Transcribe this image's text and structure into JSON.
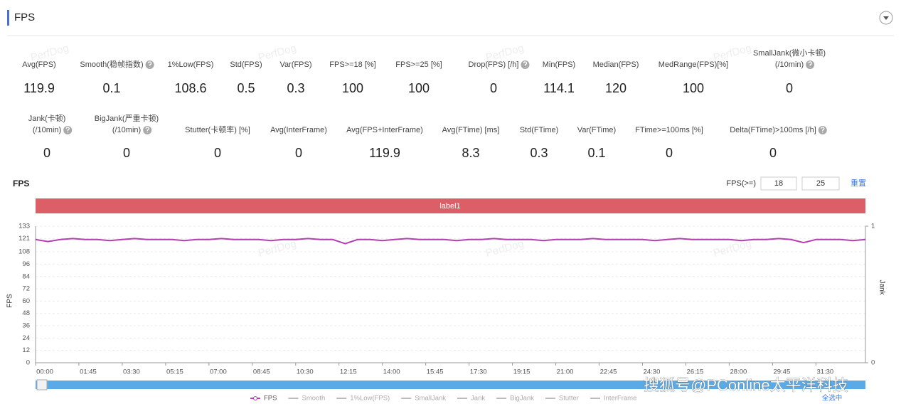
{
  "header": {
    "title": "FPS"
  },
  "watermark": "PerfDog",
  "stats": [
    [
      {
        "label": [
          "Avg(FPS)"
        ],
        "value": 119.9
      },
      {
        "label": [
          "Smooth(稳帧指数)"
        ],
        "value": 0.1,
        "help": true
      },
      {
        "label": [
          "1%Low(FPS)"
        ],
        "value": 108.6
      },
      {
        "label": [
          "Std(FPS)"
        ],
        "value": 0.5
      },
      {
        "label": [
          "Var(FPS)"
        ],
        "value": 0.3
      },
      {
        "label": [
          "FPS>=18 [%]"
        ],
        "value": 100
      },
      {
        "label": [
          "FPS>=25 [%]"
        ],
        "value": 100
      },
      {
        "label": [
          "Drop(FPS) [/h]"
        ],
        "value": 0,
        "help": true
      },
      {
        "label": [
          "Min(FPS)"
        ],
        "value": 114.1
      },
      {
        "label": [
          "Median(FPS)"
        ],
        "value": 120
      },
      {
        "label": [
          "MedRange(FPS)[%]"
        ],
        "value": 100
      },
      {
        "label": [
          "SmallJank(微小卡顿)",
          "(/10min)"
        ],
        "value": 0,
        "help": true
      }
    ],
    [
      {
        "label": [
          "Jank(卡顿)",
          "(/10min)"
        ],
        "value": 0,
        "help": true
      },
      {
        "label": [
          "BigJank(严重卡顿)",
          "(/10min)"
        ],
        "value": 0,
        "help": true
      },
      {
        "label": [
          "Stutter(卡顿率) [%]"
        ],
        "value": 0
      },
      {
        "label": [
          "Avg(InterFrame)"
        ],
        "value": 0
      },
      {
        "label": [
          "Avg(FPS+InterFrame)"
        ],
        "value": 119.9
      },
      {
        "label": [
          "Avg(FTime) [ms]"
        ],
        "value": 8.3
      },
      {
        "label": [
          "Std(FTime)"
        ],
        "value": 0.3
      },
      {
        "label": [
          "Var(FTime)"
        ],
        "value": 0.1
      },
      {
        "label": [
          "FTime>=100ms [%]"
        ],
        "value": 0
      },
      {
        "label": [
          "Delta(FTime)>100ms [/h]"
        ],
        "value": 0,
        "help": true
      }
    ]
  ],
  "controls": {
    "threshold_label": "FPS(>=)",
    "thresholds": [
      "18",
      "25"
    ],
    "reset": "重置",
    "select_all": "全选中"
  },
  "footer_watermark": "搜狐号@PConline太平洋科技",
  "chart_data": {
    "type": "line",
    "title": "FPS",
    "band_label": "label1",
    "y_label": "FPS",
    "y2_label": "Jank",
    "x": [
      0,
      30,
      60,
      90,
      120,
      150,
      180,
      210,
      240,
      270,
      300,
      330,
      360,
      390,
      420,
      450,
      480,
      510,
      540,
      570,
      600,
      630,
      660,
      690,
      720,
      750,
      780,
      810,
      840,
      870,
      900,
      930,
      960,
      990,
      1020,
      1050,
      1080,
      1110,
      1140,
      1170,
      1200,
      1230,
      1260,
      1290,
      1320,
      1350,
      1380,
      1410,
      1440,
      1470,
      1500,
      1530,
      1560,
      1590,
      1620,
      1650,
      1680,
      1710,
      1740,
      1770,
      1800,
      1830,
      1860,
      1890,
      1920,
      1950,
      1980,
      2010
    ],
    "series": [
      {
        "name": "FPS",
        "color": "#b53fb0",
        "values": [
          120,
          118,
          120,
          121,
          120,
          120,
          119,
          120,
          121,
          120,
          120,
          120,
          119,
          120,
          120,
          121,
          120,
          120,
          120,
          119,
          120,
          120,
          121,
          120,
          120,
          116,
          120,
          120,
          119,
          120,
          121,
          120,
          120,
          120,
          119,
          120,
          120,
          121,
          120,
          120,
          120,
          119,
          120,
          120,
          120,
          121,
          120,
          120,
          120,
          120,
          119,
          120,
          121,
          120,
          120,
          120,
          120,
          119,
          120,
          120,
          121,
          120,
          117,
          120,
          120,
          120,
          119,
          120
        ]
      }
    ],
    "inactive_legend": [
      "Smooth",
      "1%Low(FPS)",
      "SmallJank",
      "Jank",
      "BigJank",
      "Stutter",
      "InterFrame"
    ],
    "xlim": [
      0,
      2010
    ],
    "xticks": [
      {
        "value": 0,
        "label": "00:00"
      },
      {
        "value": 105,
        "label": "01:45"
      },
      {
        "value": 210,
        "label": "03:30"
      },
      {
        "value": 315,
        "label": "05:15"
      },
      {
        "value": 420,
        "label": "07:00"
      },
      {
        "value": 525,
        "label": "08:45"
      },
      {
        "value": 630,
        "label": "10:30"
      },
      {
        "value": 735,
        "label": "12:15"
      },
      {
        "value": 840,
        "label": "14:00"
      },
      {
        "value": 945,
        "label": "15:45"
      },
      {
        "value": 1050,
        "label": "17:30"
      },
      {
        "value": 1155,
        "label": "19:15"
      },
      {
        "value": 1260,
        "label": "21:00"
      },
      {
        "value": 1365,
        "label": "22:45"
      },
      {
        "value": 1470,
        "label": "24:30"
      },
      {
        "value": 1575,
        "label": "26:15"
      },
      {
        "value": 1680,
        "label": "28:00"
      },
      {
        "value": 1785,
        "label": "29:45"
      },
      {
        "value": 1890,
        "label": "31:30"
      }
    ],
    "ylim": [
      0,
      133
    ],
    "yticks": [
      0,
      12,
      24,
      36,
      48,
      60,
      72,
      84,
      96,
      108,
      121,
      133
    ],
    "y2lim": [
      0,
      1
    ],
    "y2ticks": [
      0,
      1
    ],
    "grid": true
  }
}
